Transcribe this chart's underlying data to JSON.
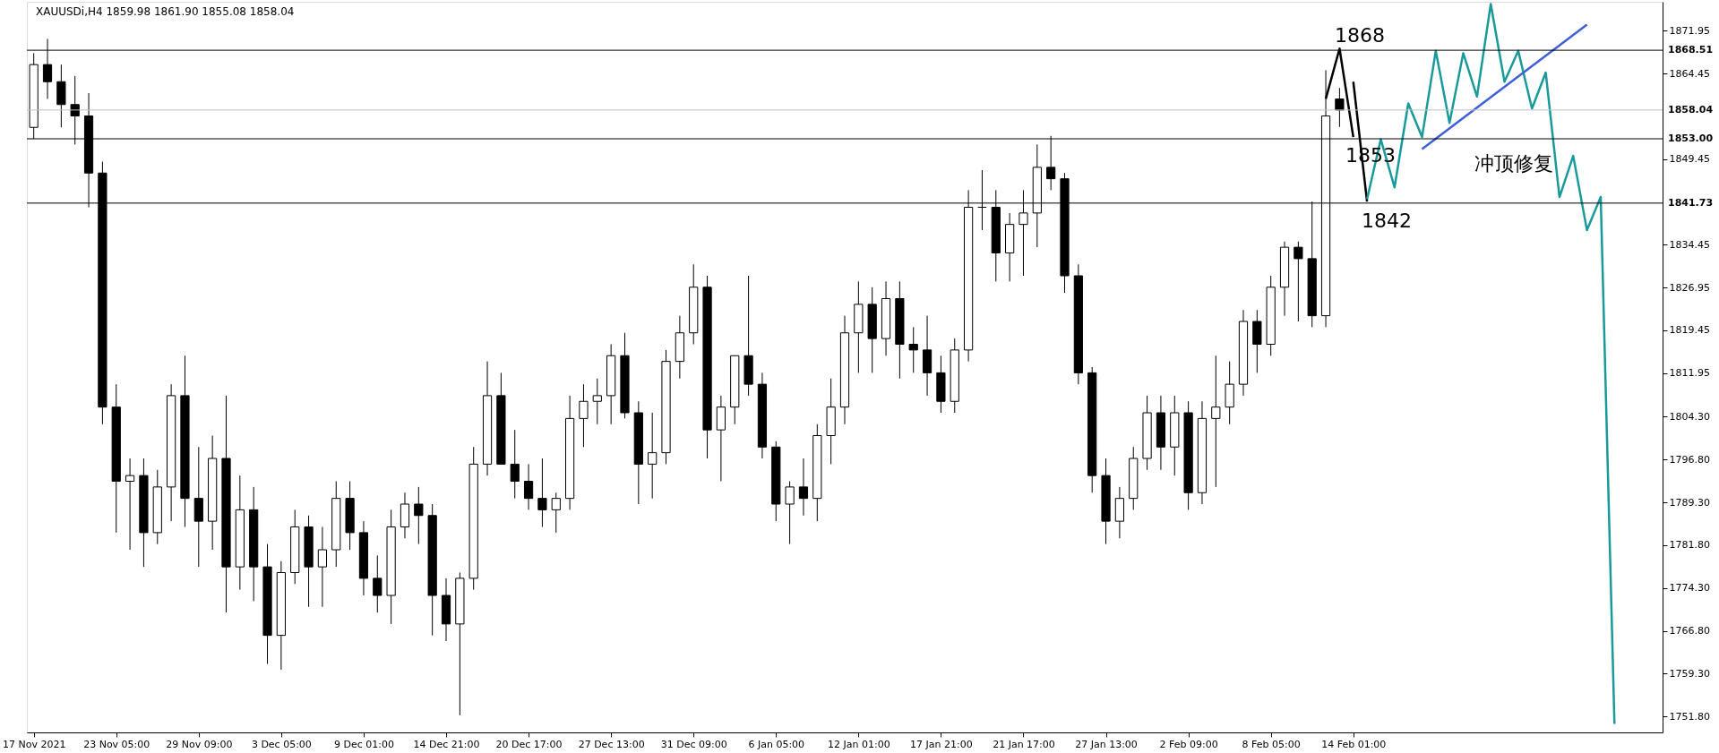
{
  "chart_data": {
    "type": "candlestick",
    "title": "XAUUSDi,H4  1859.98 1861.90 1855.08 1858.04",
    "color": "#000000",
    "categories": [
      "17 Nov 2021",
      null,
      null,
      null,
      null,
      null,
      "23 Nov 05:00",
      null,
      null,
      null,
      null,
      null,
      "29 Nov 09:00",
      null,
      null,
      null,
      null,
      null,
      "3 Dec 05:00",
      null,
      null,
      null,
      null,
      null,
      "9 Dec 01:00",
      null,
      null,
      null,
      null,
      null,
      "14 Dec 21:00",
      null,
      null,
      null,
      null,
      null,
      "20 Dec 17:00",
      null,
      null,
      null,
      null,
      null,
      "27 Dec 13:00",
      null,
      null,
      null,
      null,
      null,
      "31 Dec 09:00",
      null,
      null,
      null,
      null,
      null,
      "6 Jan 05:00",
      null,
      null,
      null,
      null,
      null,
      "12 Jan 01:00",
      null,
      null,
      null,
      null,
      null,
      "17 Jan 21:00",
      null,
      null,
      null,
      null,
      null,
      "21 Jan 17:00",
      null,
      null,
      null,
      null,
      null,
      "27 Jan 13:00",
      null,
      null,
      null,
      null,
      null,
      "2 Feb 09:00",
      null,
      null,
      null,
      null,
      null,
      "8 Feb 05:00",
      null,
      null,
      null,
      null,
      null,
      "14 Feb 01:00",
      null,
      null,
      null,
      null,
      null,
      null,
      null,
      null,
      null,
      null,
      null,
      null,
      null,
      null,
      null,
      null,
      null,
      null,
      null,
      null,
      null,
      null
    ],
    "ohlc": [
      [
        1855,
        1868,
        1853,
        1866
      ],
      [
        1866,
        1870.5,
        1860,
        1863
      ],
      [
        1863,
        1866,
        1855,
        1859
      ],
      [
        1859,
        1864,
        1852,
        1857
      ],
      [
        1857,
        1861,
        1841,
        1847
      ],
      [
        1847,
        1849,
        1803,
        1806
      ],
      [
        1806,
        1810,
        1784,
        1793
      ],
      [
        1793,
        1797,
        1781,
        1794
      ],
      [
        1794,
        1797,
        1778,
        1784
      ],
      [
        1784,
        1795,
        1782,
        1792
      ],
      [
        1792,
        1810,
        1786,
        1808
      ],
      [
        1808,
        1815,
        1785,
        1790
      ],
      [
        1790,
        1799,
        1778,
        1786
      ],
      [
        1786,
        1801,
        1781,
        1797
      ],
      [
        1797,
        1808,
        1770,
        1778
      ],
      [
        1778,
        1794,
        1774,
        1788
      ],
      [
        1788,
        1792,
        1772,
        1778
      ],
      [
        1778,
        1782,
        1761,
        1766
      ],
      [
        1766,
        1779,
        1760,
        1777
      ],
      [
        1777,
        1788,
        1775,
        1785
      ],
      [
        1785,
        1787,
        1771,
        1778
      ],
      [
        1778,
        1785,
        1771,
        1781
      ],
      [
        1781,
        1793,
        1778,
        1790
      ],
      [
        1790,
        1793,
        1781,
        1784
      ],
      [
        1784,
        1786,
        1773,
        1776
      ],
      [
        1776,
        1780,
        1770,
        1773
      ],
      [
        1773,
        1788,
        1768,
        1785
      ],
      [
        1785,
        1791,
        1783,
        1789
      ],
      [
        1789,
        1792,
        1782,
        1787
      ],
      [
        1787,
        1789,
        1766,
        1773
      ],
      [
        1773,
        1776,
        1765,
        1768
      ],
      [
        1768,
        1777,
        1752,
        1776
      ],
      [
        1776,
        1799,
        1774,
        1796
      ],
      [
        1796,
        1814,
        1794,
        1808
      ],
      [
        1808,
        1812,
        1796,
        1796
      ],
      [
        1796,
        1802,
        1790,
        1793
      ],
      [
        1793,
        1796,
        1788,
        1790
      ],
      [
        1790,
        1797,
        1785,
        1788
      ],
      [
        1788,
        1791,
        1784,
        1790
      ],
      [
        1790,
        1808,
        1788,
        1804
      ],
      [
        1804,
        1810,
        1799,
        1807
      ],
      [
        1807,
        1811,
        1803,
        1808
      ],
      [
        1808,
        1817,
        1803,
        1815
      ],
      [
        1815,
        1819,
        1804,
        1805
      ],
      [
        1805,
        1807,
        1789,
        1796
      ],
      [
        1796,
        1805,
        1790,
        1798
      ],
      [
        1798,
        1816,
        1796,
        1814
      ],
      [
        1814,
        1822,
        1811,
        1819
      ],
      [
        1819,
        1831,
        1817,
        1827
      ],
      [
        1827,
        1829,
        1797,
        1802
      ],
      [
        1802,
        1808,
        1793,
        1806
      ],
      [
        1806,
        1815,
        1803,
        1815
      ],
      [
        1815,
        1829,
        1808,
        1810
      ],
      [
        1810,
        1812,
        1797,
        1799
      ],
      [
        1799,
        1800,
        1786,
        1789
      ],
      [
        1789,
        1793,
        1782,
        1792
      ],
      [
        1792,
        1797,
        1787,
        1790
      ],
      [
        1790,
        1803,
        1786,
        1801
      ],
      [
        1801,
        1811,
        1796,
        1806
      ],
      [
        1806,
        1822,
        1803,
        1819
      ],
      [
        1819,
        1828,
        1812,
        1824
      ],
      [
        1824,
        1827,
        1812,
        1818
      ],
      [
        1818,
        1828,
        1815,
        1825
      ],
      [
        1825,
        1828,
        1811,
        1817
      ],
      [
        1817,
        1820,
        1812,
        1816
      ],
      [
        1816,
        1822,
        1808,
        1812
      ],
      [
        1812,
        1815,
        1805,
        1807
      ],
      [
        1807,
        1818,
        1805,
        1816
      ],
      [
        1816,
        1844,
        1814,
        1841
      ],
      [
        1841,
        1847.5,
        1837,
        1841
      ],
      [
        1841,
        1844,
        1828,
        1833
      ],
      [
        1833,
        1840,
        1828,
        1838
      ],
      [
        1838,
        1844,
        1829,
        1840
      ],
      [
        1840,
        1852,
        1834,
        1848
      ],
      [
        1848,
        1853.5,
        1844,
        1846
      ],
      [
        1846,
        1847,
        1826,
        1829
      ],
      [
        1829,
        1831,
        1810,
        1812
      ],
      [
        1812,
        1813,
        1791,
        1794
      ],
      [
        1794,
        1797,
        1782,
        1786
      ],
      [
        1786,
        1792,
        1783,
        1790
      ],
      [
        1790,
        1799,
        1788,
        1797
      ],
      [
        1797,
        1808,
        1795,
        1805
      ],
      [
        1805,
        1808,
        1795,
        1799
      ],
      [
        1799,
        1808,
        1794,
        1805
      ],
      [
        1805,
        1807,
        1788,
        1791
      ],
      [
        1791,
        1807,
        1789,
        1804
      ],
      [
        1804,
        1815,
        1792,
        1806
      ],
      [
        1806,
        1814,
        1803,
        1810
      ],
      [
        1810,
        1823,
        1808,
        1821
      ],
      [
        1821,
        1823,
        1812,
        1817
      ],
      [
        1817,
        1829,
        1815,
        1827
      ],
      [
        1827,
        1835,
        1822,
        1834
      ],
      [
        1834,
        1835,
        1821,
        1832
      ],
      [
        1832,
        1842,
        1820,
        1822
      ],
      [
        1822,
        1865,
        1820,
        1857
      ],
      [
        1859.98,
        1861.9,
        1855.08,
        1858.04
      ],
      null,
      null,
      null,
      null,
      null,
      null,
      null,
      null,
      null,
      null,
      null,
      null,
      null,
      null,
      null,
      null,
      null,
      null,
      null,
      null,
      null,
      null,
      null
    ],
    "series": [
      {
        "type": "line",
        "color": "#000000",
        "values": [
          null,
          null,
          null,
          null,
          null,
          null,
          null,
          null,
          null,
          null,
          null,
          null,
          null,
          null,
          null,
          null,
          null,
          null,
          null,
          null,
          null,
          null,
          null,
          null,
          null,
          null,
          null,
          null,
          null,
          null,
          null,
          null,
          null,
          null,
          null,
          null,
          null,
          null,
          null,
          null,
          null,
          null,
          null,
          null,
          null,
          null,
          null,
          null,
          null,
          null,
          null,
          null,
          null,
          null,
          null,
          null,
          null,
          null,
          null,
          null,
          null,
          null,
          null,
          null,
          null,
          null,
          null,
          null,
          null,
          null,
          null,
          null,
          null,
          null,
          null,
          null,
          null,
          null,
          null,
          null,
          null,
          null,
          null,
          null,
          null,
          null,
          null,
          null,
          null,
          null,
          null,
          null,
          null,
          null,
          1860,
          1868.8,
          1853.3,
          null,
          null,
          null,
          null,
          null,
          null,
          null,
          null,
          null,
          null,
          null,
          null,
          null,
          null,
          null,
          null,
          null,
          null,
          null,
          null,
          null,
          null
        ]
      },
      {
        "type": "line",
        "color": "#000000",
        "values": [
          null,
          null,
          null,
          null,
          null,
          null,
          null,
          null,
          null,
          null,
          null,
          null,
          null,
          null,
          null,
          null,
          null,
          null,
          null,
          null,
          null,
          null,
          null,
          null,
          null,
          null,
          null,
          null,
          null,
          null,
          null,
          null,
          null,
          null,
          null,
          null,
          null,
          null,
          null,
          null,
          null,
          null,
          null,
          null,
          null,
          null,
          null,
          null,
          null,
          null,
          null,
          null,
          null,
          null,
          null,
          null,
          null,
          null,
          null,
          null,
          null,
          null,
          null,
          null,
          null,
          null,
          null,
          null,
          null,
          null,
          null,
          null,
          null,
          null,
          null,
          null,
          null,
          null,
          null,
          null,
          null,
          null,
          null,
          null,
          null,
          null,
          null,
          null,
          null,
          null,
          null,
          null,
          null,
          null,
          null,
          null,
          1863,
          1842,
          null,
          null,
          null,
          null,
          null,
          null,
          null,
          null,
          null,
          null,
          null,
          null,
          null,
          null,
          null,
          null,
          null,
          null,
          null,
          null,
          null
        ]
      },
      {
        "type": "line",
        "color": "#199a9a",
        "values": [
          null,
          null,
          null,
          null,
          null,
          null,
          null,
          null,
          null,
          null,
          null,
          null,
          null,
          null,
          null,
          null,
          null,
          null,
          null,
          null,
          null,
          null,
          null,
          null,
          null,
          null,
          null,
          null,
          null,
          null,
          null,
          null,
          null,
          null,
          null,
          null,
          null,
          null,
          null,
          null,
          null,
          null,
          null,
          null,
          null,
          null,
          null,
          null,
          null,
          null,
          null,
          null,
          null,
          null,
          null,
          null,
          null,
          null,
          null,
          null,
          null,
          null,
          null,
          null,
          null,
          null,
          null,
          null,
          null,
          null,
          null,
          null,
          null,
          null,
          null,
          null,
          null,
          null,
          null,
          null,
          null,
          null,
          null,
          null,
          null,
          null,
          null,
          null,
          null,
          null,
          null,
          null,
          null,
          null,
          null,
          null,
          null,
          1842.4,
          1852.9,
          1844.5,
          1859.2,
          1853.3,
          1868.4,
          1855.8,
          1868,
          1860.4,
          1876.6,
          1863,
          1868.4,
          1858.3,
          1864.6,
          1842.8,
          1850,
          1837,
          1842.8,
          1750.5,
          null,
          null,
          null
        ]
      },
      {
        "type": "line",
        "color": "#3f5fd6",
        "values": [
          null,
          null,
          null,
          null,
          null,
          null,
          null,
          null,
          null,
          null,
          null,
          null,
          null,
          null,
          null,
          null,
          null,
          null,
          null,
          null,
          null,
          null,
          null,
          null,
          null,
          null,
          null,
          null,
          null,
          null,
          null,
          null,
          null,
          null,
          null,
          null,
          null,
          null,
          null,
          null,
          null,
          null,
          null,
          null,
          null,
          null,
          null,
          null,
          null,
          null,
          null,
          null,
          null,
          null,
          null,
          null,
          null,
          null,
          null,
          null,
          null,
          null,
          null,
          null,
          null,
          null,
          null,
          null,
          null,
          null,
          null,
          null,
          null,
          null,
          null,
          null,
          null,
          null,
          null,
          null,
          null,
          null,
          null,
          null,
          null,
          null,
          null,
          null,
          null,
          null,
          null,
          null,
          null,
          null,
          null,
          null,
          null,
          null,
          null,
          null,
          null,
          1851.2,
          null,
          null,
          null,
          null,
          null,
          null,
          null,
          null,
          null,
          null,
          null,
          1873,
          null,
          null,
          null,
          null,
          null
        ]
      }
    ],
    "ylim": [
      1749,
      1877
    ],
    "yticks": [
      1871.95,
      1864.45,
      1849.45,
      1834.45,
      1826.95,
      1819.45,
      1811.95,
      {
        "value": 1804.3,
        "label": "1804.30"
      },
      {
        "value": 1796.8,
        "label": "1796.80"
      },
      {
        "value": 1789.3,
        "label": "1789.30"
      },
      {
        "value": 1781.8,
        "label": "1781.80"
      },
      {
        "value": 1774.3,
        "label": "1774.30"
      },
      {
        "value": 1766.8,
        "label": "1766.80"
      },
      {
        "value": 1759.3,
        "label": "1759.30"
      },
      {
        "value": 1751.8,
        "label": "1751.80"
      }
    ],
    "ref_lines": [
      {
        "axis": "y",
        "value": 1868.51,
        "label": "1868.51",
        "color": "#000000"
      },
      {
        "axis": "y",
        "value": 1858.04,
        "label": "1858.04",
        "color": "#c0c0c0"
      },
      {
        "axis": "y",
        "value": 1853.0,
        "label": "1853.00",
        "color": "#000000"
      },
      {
        "axis": "y",
        "value": 1841.73,
        "label": "1841.73",
        "color": "#000000"
      }
    ],
    "annotations": [
      "1868",
      "1853",
      "1842",
      "冲顶修复"
    ],
    "grid": false
  }
}
